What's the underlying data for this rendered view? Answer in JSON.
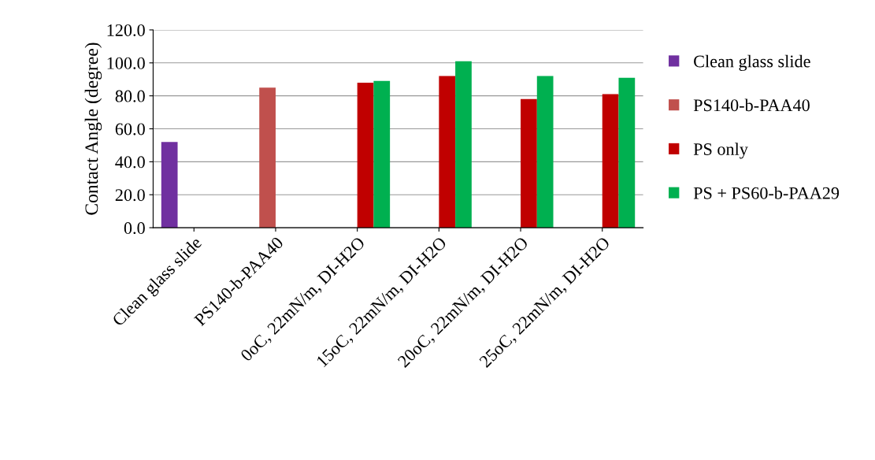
{
  "chart_data": {
    "type": "bar",
    "ylabel": "Contact Angle (degree)",
    "categories": [
      "Clean glass slide",
      "PS140-b-PAA40",
      "0oC, 22mN/m, DI-H2O",
      "15oC, 22mN/m, DI-H2O",
      "20oC, 22mN/m, DI-H2O",
      "25oC, 22mN/m, DI-H2O"
    ],
    "series": [
      {
        "name": "Clean glass slide",
        "color": "#7030a0",
        "values": [
          52,
          0,
          0,
          0,
          0,
          0
        ]
      },
      {
        "name": "PS140-b-PAA40",
        "color": "#c0504d",
        "values": [
          0,
          85,
          0,
          0,
          0,
          0
        ]
      },
      {
        "name": "PS only",
        "color": "#c00000",
        "values": [
          0,
          0,
          88,
          92,
          78,
          81
        ]
      },
      {
        "name": "PS + PS60-b-PAA29",
        "color": "#00b050",
        "values": [
          0,
          0,
          89,
          101,
          92,
          91
        ]
      }
    ],
    "ylim": [
      0,
      120
    ],
    "yticks": [
      {
        "value": 0,
        "label": "0.0"
      },
      {
        "value": 20,
        "label": "20.0"
      },
      {
        "value": 40,
        "label": "40.0"
      },
      {
        "value": 60,
        "label": "60.0"
      },
      {
        "value": 80,
        "label": "80.0"
      },
      {
        "value": 100,
        "label": "100.0"
      },
      {
        "value": 120,
        "label": "120.0"
      }
    ],
    "grid": "y",
    "legend": "right"
  }
}
